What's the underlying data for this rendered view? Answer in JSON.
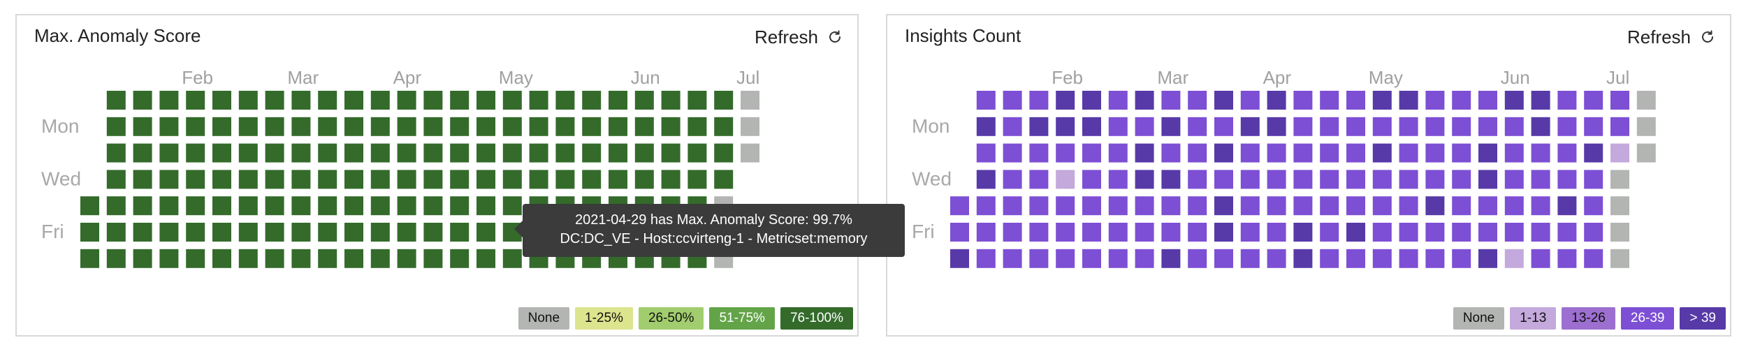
{
  "panels": {
    "anomaly": {
      "title": "Max. Anomaly Score",
      "refresh_label": "Refresh",
      "legend": [
        {
          "label": "None",
          "color": "#b3b5b3"
        },
        {
          "label": "1-25%",
          "color": "#dde48e"
        },
        {
          "label": "26-50%",
          "color": "#a2cd6e"
        },
        {
          "label": "51-75%",
          "color": "#63a449"
        },
        {
          "label": "76-100%",
          "color": "#346b2b"
        }
      ]
    },
    "insights": {
      "title": "Insights Count",
      "refresh_label": "Refresh",
      "legend": [
        {
          "label": "None",
          "color": "#b3b5b3"
        },
        {
          "label": "1-13",
          "color": "#c4a9dc"
        },
        {
          "label": "13-26",
          "color": "#9c6fd0"
        },
        {
          "label": "26-39",
          "color": "#7d4fd4"
        },
        {
          "label": "> 39",
          "color": "#573aa8"
        }
      ]
    }
  },
  "tooltip": {
    "line1": "2021-04-29 has Max. Anomaly Score: 99.7%",
    "line2": "DC:DC_VE - Host:ccvirteng-1 - Metricset:memory"
  },
  "chart_data": [
    {
      "type": "heatmap",
      "title": "Max. Anomaly Score",
      "layout": "calendar-weeks",
      "month_labels": [
        {
          "label": "Feb",
          "week": 4
        },
        {
          "label": "Mar",
          "week": 8
        },
        {
          "label": "Apr",
          "week": 12
        },
        {
          "label": "May",
          "week": 16
        },
        {
          "label": "Jun",
          "week": 21
        },
        {
          "label": "Jul",
          "week": 25
        }
      ],
      "day_labels": [
        {
          "label": "Mon",
          "day": 1
        },
        {
          "label": "Wed",
          "day": 3
        },
        {
          "label": "Fri",
          "day": 5
        }
      ],
      "color_levels": [
        "#b3b5b3",
        "#dde48e",
        "#a2cd6e",
        "#63a449",
        "#346b2b"
      ],
      "weeks": [
        [
          null,
          null,
          null,
          null,
          4,
          4,
          4
        ],
        [
          4,
          4,
          4,
          4,
          4,
          4,
          4
        ],
        [
          4,
          4,
          4,
          4,
          4,
          4,
          4
        ],
        [
          4,
          4,
          4,
          4,
          4,
          4,
          4
        ],
        [
          4,
          4,
          4,
          4,
          4,
          4,
          4
        ],
        [
          4,
          4,
          4,
          4,
          4,
          4,
          4
        ],
        [
          4,
          4,
          4,
          4,
          4,
          4,
          4
        ],
        [
          4,
          4,
          4,
          4,
          4,
          4,
          4
        ],
        [
          4,
          4,
          4,
          4,
          4,
          4,
          4
        ],
        [
          4,
          4,
          4,
          4,
          4,
          4,
          4
        ],
        [
          4,
          4,
          4,
          4,
          4,
          4,
          4
        ],
        [
          4,
          4,
          4,
          4,
          4,
          4,
          4
        ],
        [
          4,
          4,
          4,
          4,
          4,
          4,
          4
        ],
        [
          4,
          4,
          4,
          4,
          4,
          4,
          4
        ],
        [
          4,
          4,
          4,
          4,
          4,
          4,
          4
        ],
        [
          4,
          4,
          4,
          4,
          4,
          4,
          4
        ],
        [
          4,
          4,
          4,
          4,
          4,
          4,
          4
        ],
        [
          4,
          4,
          4,
          4,
          4,
          4,
          4
        ],
        [
          4,
          4,
          4,
          4,
          4,
          4,
          4
        ],
        [
          4,
          4,
          4,
          4,
          4,
          4,
          4
        ],
        [
          4,
          4,
          4,
          4,
          4,
          4,
          4
        ],
        [
          4,
          4,
          4,
          4,
          4,
          4,
          4
        ],
        [
          4,
          4,
          4,
          4,
          4,
          4,
          4
        ],
        [
          4,
          4,
          4,
          4,
          4,
          4,
          4
        ],
        [
          4,
          4,
          4,
          4,
          0,
          0,
          0
        ],
        [
          0,
          0,
          0,
          null,
          null,
          null,
          null
        ]
      ]
    },
    {
      "type": "heatmap",
      "title": "Insights Count",
      "layout": "calendar-weeks",
      "month_labels": [
        {
          "label": "Feb",
          "week": 4
        },
        {
          "label": "Mar",
          "week": 8
        },
        {
          "label": "Apr",
          "week": 12
        },
        {
          "label": "May",
          "week": 16
        },
        {
          "label": "Jun",
          "week": 21
        },
        {
          "label": "Jul",
          "week": 25
        }
      ],
      "day_labels": [
        {
          "label": "Mon",
          "day": 1
        },
        {
          "label": "Wed",
          "day": 3
        },
        {
          "label": "Fri",
          "day": 5
        }
      ],
      "color_levels": [
        "#b3b5b3",
        "#c4a9dc",
        "#9c6fd0",
        "#7d4fd4",
        "#573aa8"
      ],
      "weeks": [
        [
          null,
          null,
          null,
          null,
          3,
          3,
          4
        ],
        [
          3,
          4,
          3,
          4,
          3,
          3,
          3
        ],
        [
          3,
          3,
          3,
          3,
          3,
          3,
          3
        ],
        [
          3,
          4,
          3,
          3,
          3,
          3,
          3
        ],
        [
          4,
          4,
          3,
          1,
          3,
          3,
          3
        ],
        [
          4,
          4,
          3,
          3,
          3,
          3,
          3
        ],
        [
          3,
          3,
          3,
          3,
          3,
          3,
          3
        ],
        [
          4,
          3,
          4,
          4,
          3,
          3,
          3
        ],
        [
          3,
          4,
          3,
          4,
          3,
          3,
          4
        ],
        [
          3,
          3,
          3,
          3,
          3,
          3,
          3
        ],
        [
          4,
          3,
          4,
          3,
          4,
          4,
          3
        ],
        [
          3,
          4,
          3,
          3,
          3,
          3,
          3
        ],
        [
          4,
          4,
          3,
          3,
          3,
          3,
          3
        ],
        [
          3,
          3,
          3,
          3,
          3,
          4,
          4
        ],
        [
          3,
          3,
          3,
          3,
          3,
          3,
          3
        ],
        [
          3,
          3,
          3,
          3,
          3,
          4,
          3
        ],
        [
          4,
          3,
          4,
          3,
          3,
          3,
          3
        ],
        [
          4,
          3,
          3,
          3,
          3,
          3,
          3
        ],
        [
          3,
          3,
          3,
          3,
          4,
          3,
          3
        ],
        [
          3,
          3,
          3,
          3,
          3,
          3,
          3
        ],
        [
          3,
          3,
          4,
          4,
          3,
          3,
          4
        ],
        [
          4,
          3,
          3,
          3,
          3,
          3,
          1
        ],
        [
          4,
          4,
          3,
          3,
          3,
          3,
          3
        ],
        [
          3,
          3,
          3,
          3,
          4,
          3,
          3
        ],
        [
          3,
          3,
          4,
          3,
          3,
          3,
          3
        ],
        [
          3,
          3,
          1,
          0,
          0,
          0,
          0
        ],
        [
          0,
          0,
          0,
          null,
          null,
          null,
          null
        ]
      ]
    }
  ]
}
